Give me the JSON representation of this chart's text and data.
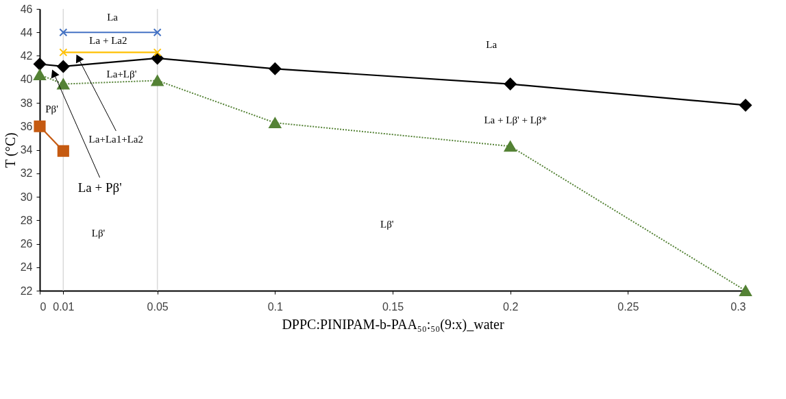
{
  "chart_data": {
    "type": "line",
    "xlabel": "DPPC:PINIPAM-b-PAA₅₀:₅₀(9:x)_water",
    "ylabel": "T (°C)",
    "x": [
      0,
      0.01,
      0.05,
      0.1,
      0.2,
      0.3
    ],
    "xlim": [
      0,
      0.3
    ],
    "xticks": [
      0,
      0.01,
      0.05,
      0.1,
      0.15,
      0.2,
      0.25,
      0.3
    ],
    "ylim": [
      22,
      46
    ],
    "yticks": [
      22,
      24,
      26,
      28,
      30,
      32,
      34,
      36,
      38,
      40,
      42,
      44,
      46
    ],
    "grid": false,
    "series": [
      {
        "color": "#000000",
        "marker": "diamond",
        "line_style": "solid",
        "values": [
          41.3,
          41.1,
          41.8,
          40.9,
          39.6,
          37.8
        ]
      },
      {
        "color": "#548235",
        "marker": "triangle",
        "line_style": "dotted",
        "values": [
          40.4,
          39.6,
          39.9,
          36.3,
          34.3,
          22
        ]
      },
      {
        "color": "#c55a11",
        "marker": "square",
        "line_style": "solid",
        "x": [
          0,
          0.01
        ],
        "values": [
          36,
          33.9
        ]
      },
      {
        "color": "#4472c4",
        "marker": "cross",
        "line_style": "solid",
        "x": [
          0.01,
          0.05
        ],
        "values": [
          44,
          44
        ]
      },
      {
        "color": "#ffc000",
        "marker": "cross",
        "line_style": "solid",
        "x": [
          0.01,
          0.05
        ],
        "values": [
          42.3,
          42.3
        ]
      }
    ],
    "ref_lines": [
      {
        "axis": "x",
        "value": 0.01,
        "color": "#d9d9d9"
      },
      {
        "axis": "x",
        "value": 0.05,
        "color": "#d9d9d9"
      }
    ],
    "annotations": [
      "La",
      "La + La2",
      "La",
      "La+Lβ'",
      "Pβ'",
      "La + Lβ' + Lβ*",
      "Lβ'",
      "Lβ'",
      {
        "text": "La+La1+La2",
        "x": 0.0164,
        "y": 41.8
      },
      {
        "text": "La + Pβ'",
        "x": 0.006,
        "y": 40.5
      }
    ]
  }
}
